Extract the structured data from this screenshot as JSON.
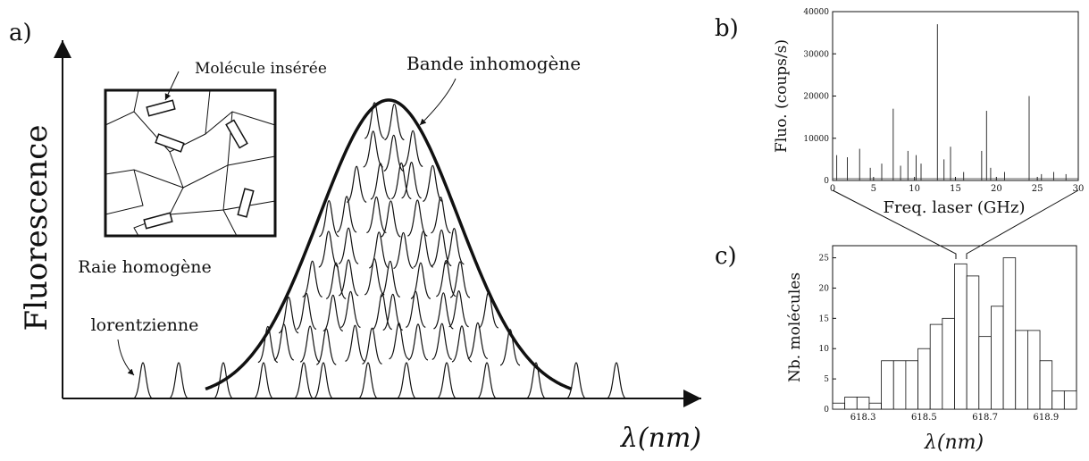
{
  "panel_a": {
    "label": "a)",
    "y_label": "Fluorescence",
    "x_label": "λ(nm)",
    "inset_label": "Molécule insérée",
    "band_label": "Bande inhomogène",
    "line_label": [
      "Raie homogène",
      "lorentzienne"
    ]
  },
  "chart_data": [
    {
      "type": "stem",
      "panel_label": "b)",
      "x_label": "Freq. laser (GHz)",
      "y_label": "Fluo. (coups/s)",
      "color": "#333333",
      "x": [
        0.5,
        1.8,
        3.3,
        4.6,
        6.0,
        7.4,
        8.3,
        9.2,
        10.2,
        10.8,
        12.8,
        13.6,
        14.4,
        16.0,
        18.2,
        18.8,
        19.3,
        21.0,
        24.0,
        25.5,
        27.0,
        28.5
      ],
      "values": [
        6000,
        5500,
        7500,
        3000,
        4000,
        17000,
        3500,
        7000,
        6000,
        4000,
        37000,
        5000,
        8000,
        2000,
        7000,
        16500,
        3000,
        2000,
        20000,
        1500,
        2000,
        1500
      ],
      "xlim": [
        0,
        30
      ],
      "xticks": [
        0,
        5,
        10,
        15,
        20,
        25,
        30
      ],
      "ylim": [
        0,
        40000
      ],
      "yticks": [
        0,
        10000,
        20000,
        30000,
        40000
      ]
    },
    {
      "type": "histogram",
      "panel_label": "c)",
      "x_label": "λ(nm)",
      "y_label": "Nb. molécules",
      "color": "#ffffff",
      "bins": [
        618.2,
        618.24,
        618.28,
        618.32,
        618.36,
        618.4,
        618.44,
        618.48,
        618.52,
        618.56,
        618.6,
        618.64,
        618.68,
        618.72,
        618.76,
        618.8,
        618.84,
        618.88,
        618.92,
        618.96,
        619.0
      ],
      "values": [
        1,
        2,
        2,
        1,
        8,
        8,
        8,
        10,
        14,
        15,
        24,
        22,
        12,
        17,
        25,
        13,
        13,
        8,
        3,
        3
      ],
      "xlim": [
        618.2,
        619.0
      ],
      "xticks": [
        618.3,
        618.5,
        618.7,
        618.9
      ],
      "ylim": [
        0,
        27
      ],
      "yticks": [
        0,
        5,
        10,
        15,
        20,
        25
      ]
    }
  ]
}
